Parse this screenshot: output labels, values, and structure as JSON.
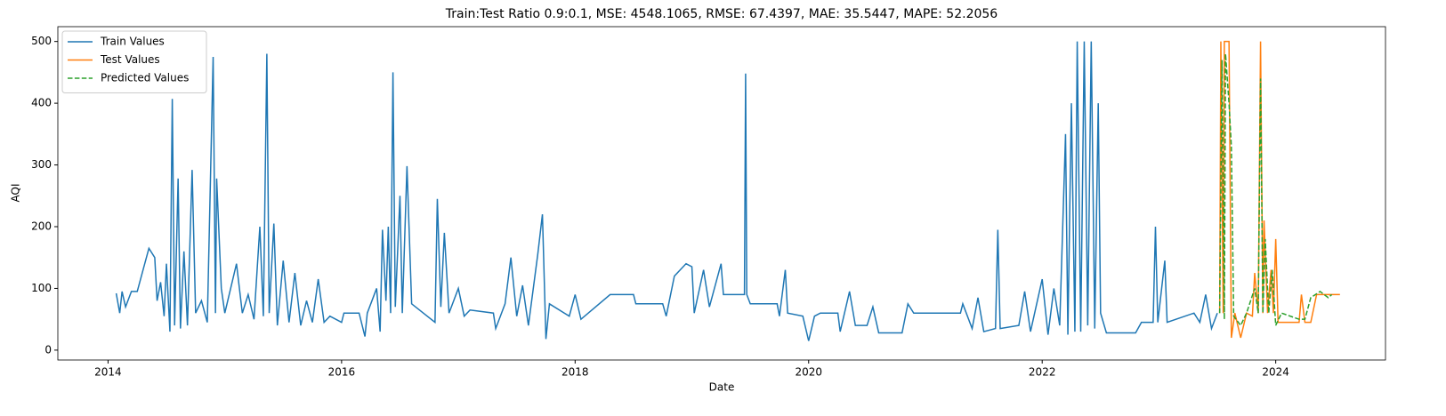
{
  "chart_data": {
    "type": "line",
    "title": "Train:Test Ratio 0.9:0.1, MSE: 4548.1065, RMSE: 67.4397, MAE: 35.5447, MAPE: 52.2056",
    "x_label": "Date",
    "y_label": "AQI",
    "xlim": [
      2013.57,
      2024.94
    ],
    "xticks": [
      2014,
      2016,
      2018,
      2020,
      2022,
      2024
    ],
    "ylim": [
      -16,
      524
    ],
    "yticks": [
      0,
      100,
      200,
      300,
      400,
      500
    ],
    "legend": "upper left",
    "series": [
      {
        "name": "Train Values",
        "color": "#1f77b4",
        "linestyle": "solid",
        "x": [
          2014.07,
          2014.1,
          2014.12,
          2014.15,
          2014.2,
          2014.25,
          2014.3,
          2014.35,
          2014.4,
          2014.42,
          2014.45,
          2014.48,
          2014.5,
          2014.53,
          2014.55,
          2014.57,
          2014.6,
          2014.62,
          2014.65,
          2014.68,
          2014.72,
          2014.75,
          2014.8,
          2014.85,
          2014.9,
          2014.92,
          2014.93,
          2014.97,
          2015.0,
          2015.05,
          2015.1,
          2015.15,
          2015.2,
          2015.25,
          2015.3,
          2015.33,
          2015.36,
          2015.38,
          2015.42,
          2015.45,
          2015.5,
          2015.55,
          2015.6,
          2015.65,
          2015.7,
          2015.75,
          2015.8,
          2015.85,
          2015.9,
          2016.0,
          2016.02,
          2016.15,
          2016.2,
          2016.22,
          2016.3,
          2016.33,
          2016.35,
          2016.38,
          2016.4,
          2016.42,
          2016.44,
          2016.46,
          2016.5,
          2016.52,
          2016.56,
          2016.6,
          2016.8,
          2016.82,
          2016.85,
          2016.88,
          2016.92,
          2017.0,
          2017.05,
          2017.1,
          2017.3,
          2017.32,
          2017.4,
          2017.45,
          2017.5,
          2017.55,
          2017.6,
          2017.68,
          2017.72,
          2017.75,
          2017.78,
          2017.95,
          2018.0,
          2018.05,
          2018.3,
          2018.5,
          2018.52,
          2018.75,
          2018.78,
          2018.85,
          2018.95,
          2019.0,
          2019.02,
          2019.1,
          2019.15,
          2019.25,
          2019.27,
          2019.45,
          2019.46,
          2019.47,
          2019.5,
          2019.73,
          2019.75,
          2019.8,
          2019.82,
          2019.95,
          2020.0,
          2020.05,
          2020.1,
          2020.25,
          2020.27,
          2020.35,
          2020.4,
          2020.5,
          2020.55,
          2020.6,
          2020.8,
          2020.85,
          2020.9,
          2021.3,
          2021.32,
          2021.4,
          2021.45,
          2021.5,
          2021.6,
          2021.62,
          2021.64,
          2021.8,
          2021.85,
          2021.9,
          2022.0,
          2022.05,
          2022.1,
          2022.15,
          2022.2,
          2022.22,
          2022.25,
          2022.28,
          2022.3,
          2022.33,
          2022.36,
          2022.39,
          2022.42,
          2022.45,
          2022.48,
          2022.5,
          2022.55,
          2022.8,
          2022.85,
          2022.95,
          2022.97,
          2022.99,
          2023.05,
          2023.07,
          2023.3,
          2023.35,
          2023.4,
          2023.45,
          2023.5
        ],
        "values": [
          92,
          60,
          95,
          70,
          95,
          95,
          130,
          165,
          150,
          80,
          110,
          55,
          140,
          30,
          407,
          40,
          278,
          35,
          160,
          40,
          292,
          60,
          80,
          45,
          475,
          60,
          278,
          100,
          60,
          100,
          140,
          60,
          90,
          50,
          200,
          55,
          480,
          60,
          205,
          40,
          145,
          45,
          125,
          40,
          80,
          45,
          115,
          45,
          55,
          45,
          60,
          60,
          22,
          60,
          100,
          30,
          195,
          80,
          200,
          60,
          450,
          70,
          250,
          60,
          298,
          75,
          45,
          245,
          70,
          190,
          60,
          100,
          55,
          65,
          60,
          35,
          75,
          150,
          55,
          105,
          40,
          155,
          220,
          18,
          75,
          55,
          90,
          50,
          90,
          90,
          75,
          75,
          55,
          120,
          140,
          135,
          60,
          130,
          70,
          140,
          90,
          90,
          448,
          90,
          75,
          75,
          55,
          130,
          60,
          55,
          15,
          55,
          60,
          60,
          30,
          95,
          40,
          40,
          70,
          28,
          28,
          75,
          60,
          60,
          75,
          35,
          85,
          30,
          35,
          195,
          35,
          40,
          95,
          30,
          115,
          25,
          100,
          40,
          350,
          25,
          400,
          30,
          500,
          30,
          500,
          40,
          500,
          35,
          400,
          60,
          28,
          28,
          45,
          45,
          200,
          45,
          145,
          45,
          60,
          45,
          90,
          35,
          60
        ]
      },
      {
        "name": "Test Values",
        "color": "#ff7f0e",
        "linestyle": "solid",
        "x": [
          2023.52,
          2023.53,
          2023.55,
          2023.56,
          2023.6,
          2023.62,
          2023.65,
          2023.7,
          2023.75,
          2023.8,
          2023.82,
          2023.85,
          2023.87,
          2023.89,
          2023.9,
          2023.93,
          2023.96,
          2023.98,
          2024.0,
          2024.02,
          2024.2,
          2024.22,
          2024.25,
          2024.3,
          2024.35,
          2024.45,
          2024.55
        ],
        "values": [
          60,
          500,
          60,
          500,
          500,
          20,
          60,
          20,
          60,
          55,
          125,
          60,
          500,
          60,
          210,
          60,
          130,
          60,
          180,
          45,
          45,
          90,
          45,
          45,
          90,
          90,
          90
        ]
      },
      {
        "name": "Predicted Values",
        "color": "#2ca02c",
        "linestyle": "dashed",
        "x": [
          2023.52,
          2023.54,
          2023.56,
          2023.57,
          2023.6,
          2023.62,
          2023.64,
          2023.7,
          2023.75,
          2023.82,
          2023.85,
          2023.87,
          2023.89,
          2023.91,
          2023.94,
          2023.97,
          2024.0,
          2024.05,
          2024.2,
          2024.25,
          2024.3,
          2024.38,
          2024.45,
          2024.48
        ],
        "values": [
          60,
          470,
          50,
          480,
          400,
          330,
          55,
          40,
          60,
          100,
          60,
          440,
          60,
          180,
          60,
          130,
          40,
          60,
          50,
          50,
          85,
          95,
          85,
          90
        ]
      }
    ]
  }
}
